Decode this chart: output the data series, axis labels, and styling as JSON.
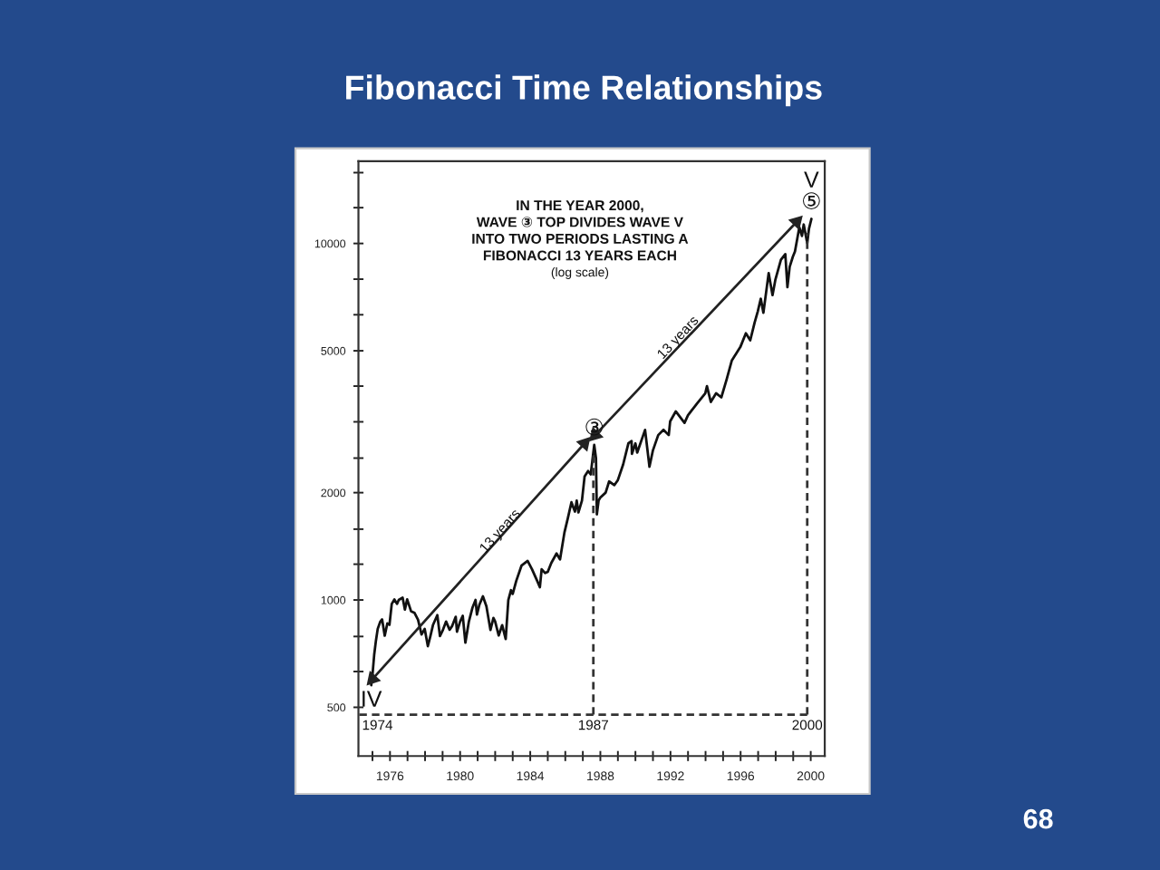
{
  "chart_data": {
    "type": "line",
    "title": "Fibonacci Time Relationships",
    "log": "y",
    "xlim": [
      1974.2,
      2000.8
    ],
    "ylim": [
      365,
      17000
    ],
    "xticks": [
      {
        "value": 1975,
        "label": null
      },
      1976,
      {
        "value": 1977,
        "label": null
      },
      {
        "value": 1978,
        "label": null
      },
      {
        "value": 1979,
        "label": null
      },
      1980,
      {
        "value": 1981,
        "label": null
      },
      {
        "value": 1982,
        "label": null
      },
      {
        "value": 1983,
        "label": null
      },
      1984,
      {
        "value": 1985,
        "label": null
      },
      {
        "value": 1986,
        "label": null
      },
      {
        "value": 1987,
        "label": null
      },
      1988,
      {
        "value": 1989,
        "label": null
      },
      {
        "value": 1990,
        "label": null
      },
      {
        "value": 1991,
        "label": null
      },
      1992,
      {
        "value": 1993,
        "label": null
      },
      {
        "value": 1994,
        "label": null
      },
      {
        "value": 1995,
        "label": null
      },
      1996,
      {
        "value": 1997,
        "label": null
      },
      {
        "value": 1998,
        "label": null
      },
      {
        "value": 1999,
        "label": null
      },
      2000
    ],
    "yticks": [
      500,
      {
        "value": 630,
        "label": null
      },
      {
        "value": 790,
        "label": null
      },
      1000,
      {
        "value": 1260,
        "label": null
      },
      {
        "value": 1580,
        "label": null
      },
      2000,
      {
        "value": 2500,
        "label": null
      },
      {
        "value": 3160,
        "label": null
      },
      {
        "value": 3980,
        "label": null
      },
      5000,
      {
        "value": 6310,
        "label": null
      },
      {
        "value": 7940,
        "label": null
      },
      10000,
      {
        "value": 12600,
        "label": null
      },
      {
        "value": 15800,
        "label": null
      }
    ],
    "series": [
      {
        "color": "#111111",
        "x": [
          1974.93,
          1975.0,
          1975.1,
          1975.2,
          1975.3,
          1975.45,
          1975.55,
          1975.7,
          1975.85,
          1975.97,
          1976.1,
          1976.25,
          1976.4,
          1976.5,
          1976.72,
          1976.85,
          1976.98,
          1977.2,
          1977.4,
          1977.6,
          1977.8,
          1977.98,
          1978.16,
          1978.3,
          1978.45,
          1978.7,
          1978.85,
          1979.0,
          1979.2,
          1979.4,
          1979.55,
          1979.75,
          1979.82,
          1980.0,
          1980.15,
          1980.3,
          1980.5,
          1980.7,
          1980.88,
          1980.96,
          1981.1,
          1981.3,
          1981.5,
          1981.73,
          1981.9,
          1982.0,
          1982.2,
          1982.4,
          1982.6,
          1982.75,
          1982.9,
          1983.0,
          1983.2,
          1983.5,
          1983.85,
          1984.1,
          1984.4,
          1984.55,
          1984.65,
          1984.85,
          1985.0,
          1985.2,
          1985.5,
          1985.7,
          1985.95,
          1986.15,
          1986.35,
          1986.55,
          1986.65,
          1986.75,
          1986.95,
          1987.1,
          1987.3,
          1987.45,
          1987.56,
          1987.65,
          1987.75,
          1987.8,
          1987.9,
          1988.0,
          1988.3,
          1988.5,
          1988.8,
          1989.0,
          1989.3,
          1989.6,
          1989.78,
          1989.8,
          1990.0,
          1990.1,
          1990.55,
          1990.8,
          1991.0,
          1991.3,
          1991.6,
          1991.9,
          1991.98,
          1992.3,
          1992.8,
          1993.0,
          1993.5,
          1993.98,
          1994.08,
          1994.3,
          1994.6,
          1994.9,
          1995.2,
          1995.5,
          1995.98,
          1996.3,
          1996.55,
          1996.8,
          1996.98,
          1997.15,
          1997.3,
          1997.6,
          1997.82,
          1997.98,
          1998.3,
          1998.55,
          1998.67,
          1998.8,
          1998.98,
          1999.1,
          1999.35,
          1999.5,
          1999.6,
          1999.8,
          1999.9,
          2000.04
        ],
        "values": [
          577,
          616,
          703,
          770,
          830,
          870,
          882,
          794,
          860,
          852,
          975,
          1003,
          975,
          1000,
          1015,
          940,
          1004,
          930,
          920,
          880,
          800,
          830,
          742,
          790,
          850,
          907,
          792,
          820,
          870,
          825,
          846,
          897,
          815,
          870,
          903,
          759,
          870,
          950,
          1000,
          910,
          970,
          1024,
          960,
          824,
          890,
          870,
          795,
          850,
          777,
          1000,
          1065,
          1040,
          1130,
          1248,
          1287,
          1220,
          1130,
          1086,
          1220,
          1190,
          1200,
          1270,
          1350,
          1300,
          1546,
          1700,
          1880,
          1770,
          1900,
          1760,
          1900,
          2220,
          2300,
          2250,
          2500,
          2722,
          2500,
          1739,
          1900,
          1939,
          2000,
          2150,
          2100,
          2170,
          2400,
          2750,
          2791,
          2570,
          2750,
          2590,
          2999,
          2365,
          2630,
          2900,
          3000,
          2900,
          3168,
          3380,
          3140,
          3300,
          3550,
          3794,
          3978,
          3593,
          3800,
          3700,
          4150,
          4700,
          5117,
          5600,
          5350,
          6000,
          6448,
          7000,
          6390,
          8259,
          7161,
          7900,
          9000,
          9338,
          7539,
          8600,
          9181,
          9500,
          11100,
          10500,
          11300,
          10019,
          11000,
          11723
        ]
      },
      {
        "type": "line",
        "color": "#222222",
        "marker": "triangle",
        "x": [
          1975.0,
          1987.1
        ],
        "values": [
          600,
          2750
        ]
      },
      {
        "type": "line",
        "color": "#222222",
        "marker": "triangle",
        "x": [
          1987.7,
          1999.2
        ],
        "values": [
          2900,
          11500
        ]
      },
      {
        "type": "line",
        "color": "#333333",
        "line_style": "dashed",
        "x": [
          1974.25,
          1999.8
        ],
        "values": [
          477,
          477
        ]
      },
      {
        "type": "line",
        "color": "#333333",
        "line_style": "dashed",
        "x": [
          1987.6,
          1987.6
        ],
        "values": [
          477,
          2600
        ]
      },
      {
        "type": "line",
        "color": "#333333",
        "line_style": "dashed",
        "x": [
          1999.8,
          1999.8
        ],
        "values": [
          477,
          10700
        ]
      }
    ],
    "annotations": [
      "IN THE YEAR 2000,\nWAVE ③ TOP DIVIDES WAVE V\nINTO TWO PERIODS LASTING A\nFIBONACCI 13 YEARS EACH",
      "(log scale)",
      {
        "text": "IV",
        "x": 1974.93,
        "y": 577
      },
      {
        "text": "③",
        "x": 1987.65,
        "y": 2722
      },
      {
        "text": "V",
        "x": 2000.04,
        "y": 11723
      },
      {
        "text": "⑤",
        "x": 2000.04,
        "y": 11723
      },
      {
        "text": "13 years",
        "x": 1982.3,
        "y": 1556
      },
      {
        "text": "13 years",
        "x": 1992.45,
        "y": 5430
      },
      {
        "text": "1974",
        "x": 1974.93,
        "y": 477
      },
      {
        "text": "1987",
        "x": 1987.6,
        "y": 477
      },
      {
        "text": "2000",
        "x": 1999.8,
        "y": 477
      },
      "68"
    ]
  }
}
